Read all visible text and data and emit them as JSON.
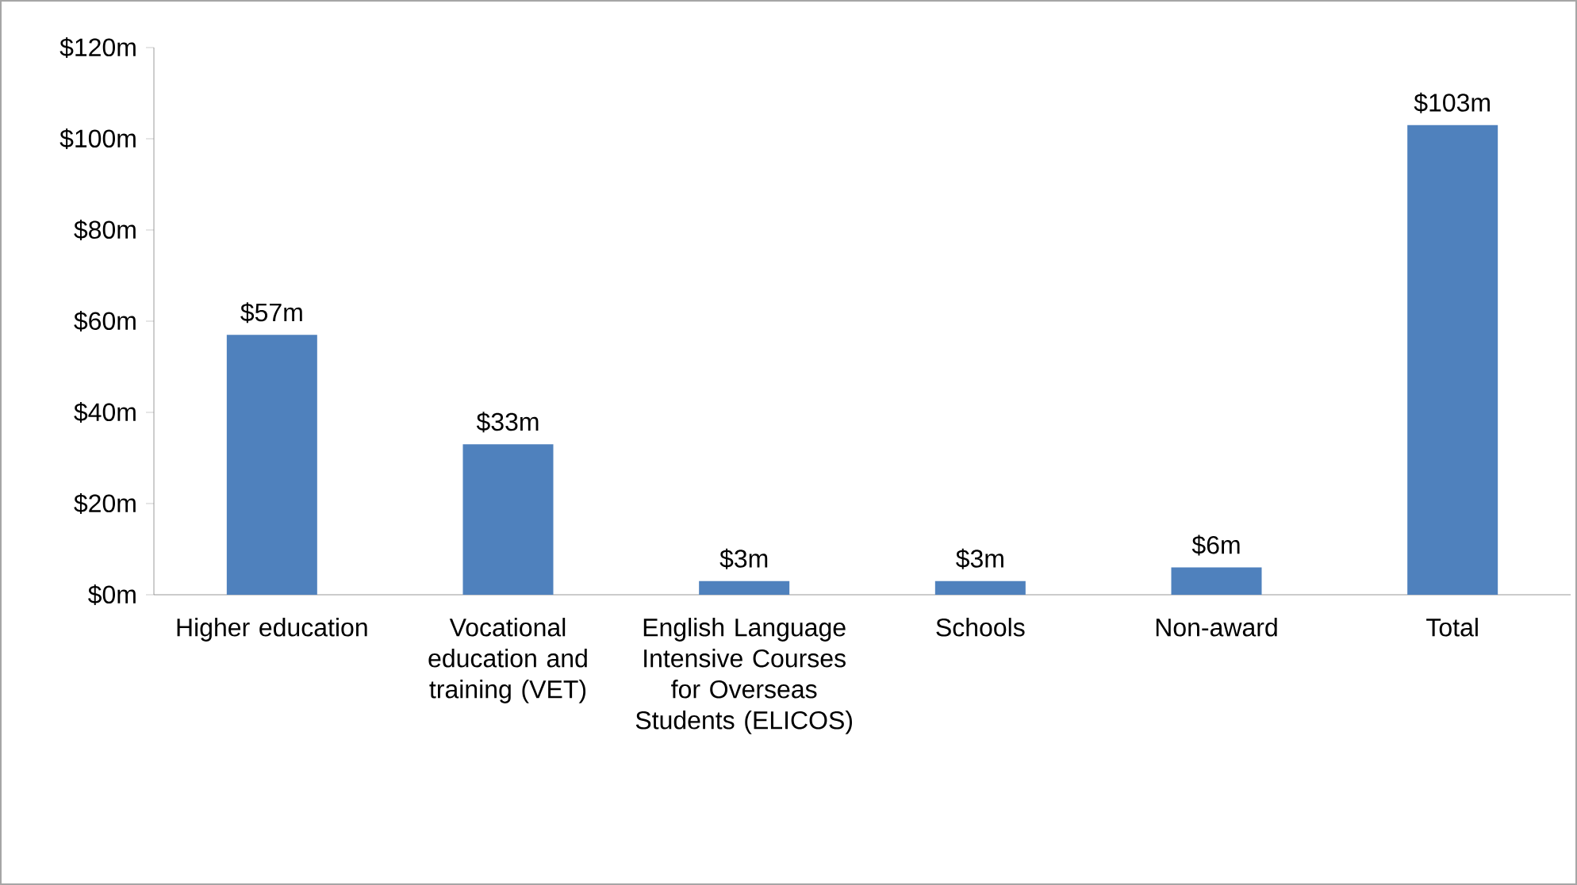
{
  "chart_data": {
    "type": "bar",
    "categories": [
      "Higher education",
      "Vocational education and training (VET)",
      "English Language Intensive Courses for Overseas Students (ELICOS)",
      "Schools",
      "Non-award",
      "Total"
    ],
    "values": [
      57,
      33,
      3,
      3,
      6,
      103
    ],
    "value_labels": [
      "$57m",
      "$33m",
      "$3m",
      "$3m",
      "$6m",
      "$103m"
    ],
    "color": "#4f81bd",
    "ylim": [
      0,
      120
    ],
    "yticks": [
      {
        "value": 0,
        "label": "$0m"
      },
      {
        "value": 20,
        "label": "$20m"
      },
      {
        "value": 40,
        "label": "$40m"
      },
      {
        "value": 60,
        "label": "$60m"
      },
      {
        "value": 80,
        "label": "$80m"
      },
      {
        "value": 100,
        "label": "$100m"
      },
      {
        "value": 120,
        "label": "$120m"
      }
    ]
  }
}
